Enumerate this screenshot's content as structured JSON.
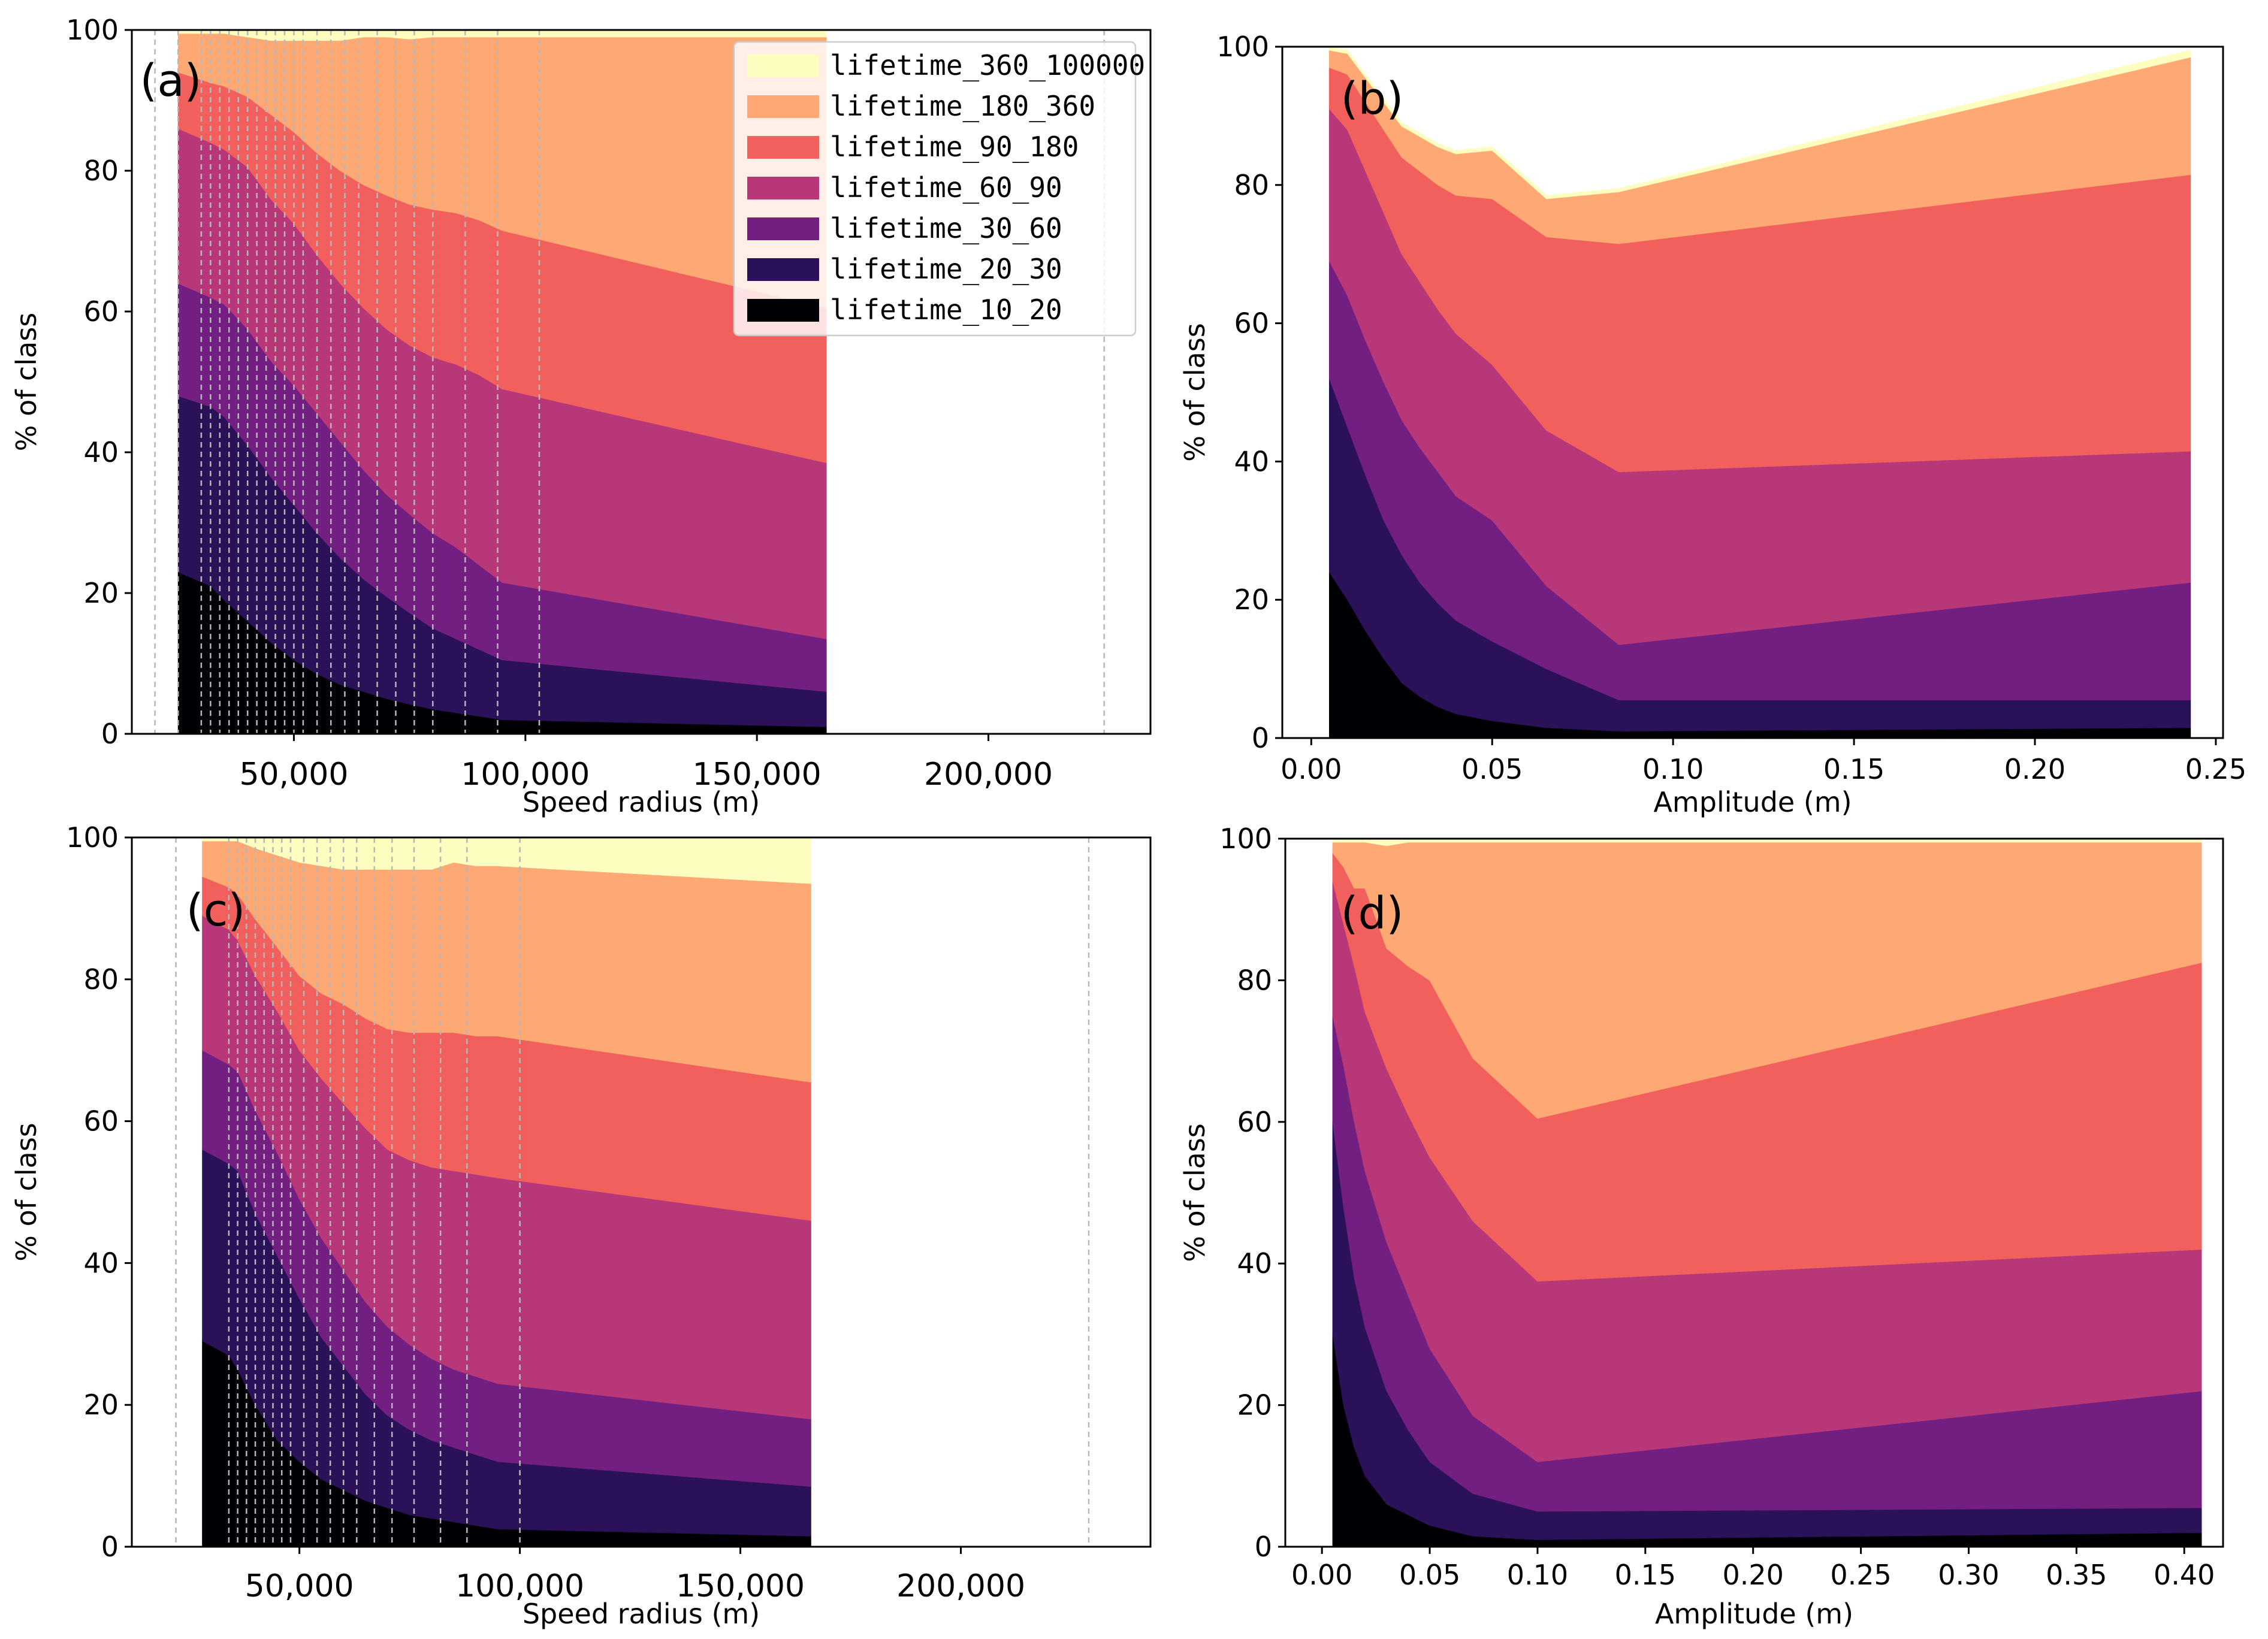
{
  "figure": {
    "layer_order": [
      "lifetime_10_20",
      "lifetime_20_30",
      "lifetime_30_60",
      "lifetime_60_90",
      "lifetime_90_180",
      "lifetime_180_360",
      "lifetime_360_100000"
    ],
    "colors": {
      "lifetime_10_20": "#000004",
      "lifetime_20_30": "#2b1158",
      "lifetime_30_60": "#721f81",
      "lifetime_60_90": "#b73779",
      "lifetime_90_180": "#f1605d",
      "lifetime_180_360": "#fea873",
      "lifetime_360_100000": "#fcfdbf"
    },
    "legend_entries": [
      {
        "key": "lifetime_360_100000",
        "label": "lifetime_360_100000"
      },
      {
        "key": "lifetime_180_360",
        "label": "lifetime_180_360"
      },
      {
        "key": "lifetime_90_180",
        "label": "lifetime_90_180"
      },
      {
        "key": "lifetime_60_90",
        "label": "lifetime_60_90"
      },
      {
        "key": "lifetime_30_60",
        "label": "lifetime_30_60"
      },
      {
        "key": "lifetime_20_30",
        "label": "lifetime_20_30"
      },
      {
        "key": "lifetime_10_20",
        "label": "lifetime_10_20"
      }
    ]
  },
  "chart_data": [
    {
      "id": "a",
      "type": "area",
      "stacked": true,
      "panel_label": "(a)",
      "xlabel": "Speed radius (m)",
      "ylabel": "% of class",
      "xlim": [
        15000,
        235000
      ],
      "ylim": [
        0,
        100
      ],
      "xticks": [
        50000,
        100000,
        150000,
        200000
      ],
      "xtick_labels": [
        "50,000",
        "100,000",
        "150,000",
        "200,000"
      ],
      "yticks": [
        0,
        20,
        40,
        60,
        80,
        100
      ],
      "ytick_labels": [
        "0",
        "20",
        "40",
        "60",
        "80",
        "100"
      ],
      "bin_edges": [
        20000,
        25000,
        30000,
        32000,
        34000,
        36000,
        38000,
        40000,
        42000,
        44000,
        46000,
        48000,
        50000,
        52000,
        55000,
        58000,
        61000,
        64000,
        68000,
        72000,
        76000,
        80000,
        87000,
        94000,
        103000,
        225000
      ],
      "legend_location": "upper right",
      "x": [
        25000,
        32000,
        35000,
        40000,
        45000,
        50000,
        55000,
        60000,
        65000,
        70000,
        75000,
        80000,
        85000,
        90000,
        95000,
        165000
      ],
      "series": [
        {
          "name": "lifetime_10_20",
          "values": [
            23,
            21,
            19,
            16,
            13,
            10.5,
            8.5,
            7,
            6,
            5,
            4.2,
            3.5,
            3,
            2.5,
            2,
            1
          ]
        },
        {
          "name": "lifetime_20_30",
          "values": [
            25,
            25.5,
            26,
            25,
            23.5,
            22,
            20,
            18,
            16,
            14.5,
            13,
            11.5,
            10.5,
            9.5,
            8.5,
            5
          ]
        },
        {
          "name": "lifetime_30_60",
          "values": [
            16,
            15.5,
            16,
            16.5,
            16.5,
            17,
            17,
            16.5,
            15.5,
            14.5,
            14,
            13.5,
            13,
            12,
            11,
            7.5
          ]
        },
        {
          "name": "lifetime_60_90",
          "values": [
            22,
            22,
            22,
            23,
            23,
            23,
            22.5,
            22.5,
            23,
            23.5,
            24,
            25,
            26,
            27,
            27.5,
            25
          ]
        },
        {
          "name": "lifetime_90_180",
          "values": [
            8,
            8.5,
            9,
            10,
            12,
            13,
            14.5,
            16,
            17.5,
            19,
            20,
            21,
            21.5,
            22,
            22.5,
            22
          ]
        },
        {
          "name": "lifetime_180_360",
          "values": [
            5.5,
            7,
            7.5,
            8.5,
            10.5,
            13,
            16,
            18.5,
            21,
            22.5,
            23.5,
            24.5,
            25,
            26,
            27.5,
            38.5
          ]
        },
        {
          "name": "lifetime_360_100000",
          "values": [
            0.5,
            0.5,
            0.5,
            1,
            1.5,
            1.5,
            1.5,
            1.5,
            1,
            1,
            1.3,
            1,
            1,
            1,
            1,
            1
          ]
        }
      ]
    },
    {
      "id": "b",
      "type": "area",
      "stacked": true,
      "panel_label": "(b)",
      "xlabel": "Amplitude (m)",
      "ylabel": "% of class",
      "xlim": [
        -0.008,
        0.252
      ],
      "ylim": [
        0,
        100
      ],
      "xticks": [
        0,
        0.05,
        0.1,
        0.15,
        0.2,
        0.25
      ],
      "xtick_labels": [
        "0.00",
        "0.05",
        "0.10",
        "0.15",
        "0.20",
        "0.25"
      ],
      "yticks": [
        0,
        20,
        40,
        60,
        80,
        100
      ],
      "ytick_labels": [
        "0",
        "20",
        "40",
        "60",
        "80",
        "100"
      ],
      "x": [
        0.005,
        0.01,
        0.015,
        0.02,
        0.025,
        0.03,
        0.035,
        0.04,
        0.05,
        0.065,
        0.085,
        0.243
      ],
      "series": [
        {
          "name": "lifetime_10_20",
          "values": [
            24,
            20,
            15.5,
            11.5,
            8,
            6,
            4.5,
            3.5,
            2.5,
            1.5,
            1,
            1.5
          ]
        },
        {
          "name": "lifetime_20_30",
          "values": [
            28,
            25,
            22.5,
            20,
            18.5,
            16.5,
            15,
            13.5,
            11.5,
            8.5,
            4.5,
            4
          ]
        },
        {
          "name": "lifetime_30_60",
          "values": [
            17,
            19,
            19.5,
            20,
            19.5,
            19.5,
            19,
            18,
            17.5,
            12,
            8,
            17
          ]
        },
        {
          "name": "lifetime_60_90",
          "values": [
            22,
            24,
            24.5,
            24.5,
            24,
            24,
            23.5,
            23.5,
            22.5,
            22.5,
            25,
            19
          ]
        },
        {
          "name": "lifetime_90_180",
          "values": [
            6,
            8,
            10,
            12,
            14,
            16,
            18,
            20,
            24,
            28,
            33,
            40
          ]
        },
        {
          "name": "lifetime_180_360",
          "values": [
            2.5,
            3,
            3.5,
            4,
            4.5,
            5,
            5.5,
            6,
            7,
            5.5,
            7.5,
            17
          ]
        },
        {
          "name": "lifetime_360_100000",
          "values": [
            0.5,
            0.5,
            0.5,
            0.5,
            0.5,
            0.5,
            0.5,
            0.5,
            0.5,
            0.5,
            0.5,
            1
          ]
        }
      ]
    },
    {
      "id": "c",
      "type": "area",
      "stacked": true,
      "panel_label": "(c)",
      "xlabel": "Speed radius (m)",
      "ylabel": "% of class",
      "xlim": [
        12000,
        243000
      ],
      "ylim": [
        0,
        100
      ],
      "xticks": [
        50000,
        100000,
        150000,
        200000
      ],
      "xtick_labels": [
        "50,000",
        "100,000",
        "150,000",
        "200,000"
      ],
      "yticks": [
        0,
        20,
        40,
        60,
        80,
        100
      ],
      "ytick_labels": [
        "0",
        "20",
        "40",
        "60",
        "80",
        "100"
      ],
      "bin_edges": [
        22000,
        34000,
        36000,
        38000,
        40000,
        42000,
        44000,
        46000,
        48000,
        51000,
        54000,
        57000,
        60000,
        63000,
        67000,
        71000,
        76000,
        82000,
        88000,
        100000,
        229000
      ],
      "x": [
        28000,
        34000,
        36000,
        40000,
        45000,
        50000,
        55000,
        60000,
        65000,
        70000,
        75000,
        80000,
        85000,
        90000,
        95000,
        166000
      ],
      "series": [
        {
          "name": "lifetime_10_20",
          "values": [
            29,
            27,
            25,
            20,
            15,
            12,
            9.5,
            8,
            6.5,
            5.5,
            4.5,
            4,
            3.5,
            3,
            2.5,
            1.5
          ]
        },
        {
          "name": "lifetime_20_30",
          "values": [
            27,
            27,
            28,
            27,
            26,
            23,
            20,
            17.5,
            15,
            13,
            12,
            11,
            10.5,
            10,
            9.5,
            7
          ]
        },
        {
          "name": "lifetime_30_60",
          "values": [
            14,
            14,
            14,
            14.5,
            14.5,
            14,
            14,
            13.5,
            13,
            12.5,
            12,
            11.5,
            11,
            11,
            11,
            9.5
          ]
        },
        {
          "name": "lifetime_60_90",
          "values": [
            19,
            19,
            18.5,
            19,
            20,
            21,
            22.5,
            23.5,
            24.5,
            25,
            26,
            27,
            28,
            28.5,
            29,
            28
          ]
        },
        {
          "name": "lifetime_90_180",
          "values": [
            5.5,
            6,
            6.5,
            8,
            9,
            10.5,
            12,
            14,
            15.5,
            17,
            18,
            19,
            19.5,
            19.5,
            20,
            19.5
          ]
        },
        {
          "name": "lifetime_180_360",
          "values": [
            5,
            6.5,
            7.5,
            10,
            13,
            16,
            18,
            19,
            21,
            22.5,
            23,
            23,
            24,
            24,
            24,
            28
          ]
        },
        {
          "name": "lifetime_360_100000",
          "values": [
            0.5,
            0.5,
            0.5,
            1.5,
            2.5,
            3.5,
            4,
            4.5,
            4.5,
            4.5,
            4.5,
            4.5,
            3.5,
            4,
            4,
            6.5
          ]
        }
      ]
    },
    {
      "id": "d",
      "type": "area",
      "stacked": true,
      "panel_label": "(d)",
      "xlabel": "Amplitude (m)",
      "ylabel": "% of class",
      "xlim": [
        -0.017,
        0.418
      ],
      "ylim": [
        0,
        100
      ],
      "xticks": [
        0,
        0.05,
        0.1,
        0.15,
        0.2,
        0.25,
        0.3,
        0.35,
        0.4
      ],
      "xtick_labels": [
        "0.00",
        "0.05",
        "0.10",
        "0.15",
        "0.20",
        "0.25",
        "0.30",
        "0.35",
        "0.40"
      ],
      "yticks": [
        0,
        20,
        40,
        60,
        80,
        100
      ],
      "ytick_labels": [
        "0",
        "20",
        "40",
        "60",
        "80",
        "100"
      ],
      "x": [
        0.005,
        0.01,
        0.015,
        0.02,
        0.03,
        0.04,
        0.05,
        0.07,
        0.1,
        0.408
      ],
      "series": [
        {
          "name": "lifetime_10_20",
          "values": [
            30,
            20,
            14,
            10,
            6,
            4.5,
            3,
            1.5,
            1,
            2
          ]
        },
        {
          "name": "lifetime_20_30",
          "values": [
            30,
            28,
            24,
            21,
            16,
            12,
            9,
            6,
            4,
            3.5
          ]
        },
        {
          "name": "lifetime_30_60",
          "values": [
            15,
            20,
            22,
            22,
            21,
            19,
            16,
            11,
            7,
            16.5
          ]
        },
        {
          "name": "lifetime_60_90",
          "values": [
            19,
            20,
            22,
            22.5,
            24.5,
            25.5,
            27,
            27.5,
            25.5,
            20
          ]
        },
        {
          "name": "lifetime_90_180",
          "values": [
            4,
            8,
            11,
            17.5,
            17,
            21,
            25,
            23,
            23,
            40.5
          ]
        },
        {
          "name": "lifetime_180_360",
          "values": [
            1.5,
            3.5,
            6.5,
            6.5,
            14.5,
            17.5,
            19.5,
            30.5,
            39,
            17
          ]
        },
        {
          "name": "lifetime_360_100000",
          "values": [
            0.5,
            0.5,
            0.5,
            0.5,
            1,
            0.5,
            0.5,
            0.5,
            0.5,
            0.5
          ]
        }
      ]
    }
  ]
}
